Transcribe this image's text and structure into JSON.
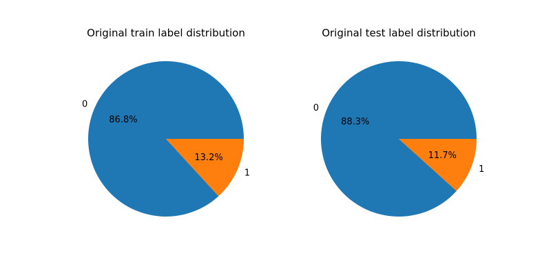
{
  "chart_data": [
    {
      "type": "pie",
      "title": "Original train label distribution",
      "labels": [
        "0",
        "1"
      ],
      "values": [
        86.8,
        13.2
      ],
      "value_labels": [
        "86.8%",
        "13.2%"
      ],
      "colors": [
        "#1f77b4",
        "#ff7f0e"
      ],
      "start_angle": 0,
      "direction": "counterclockwise"
    },
    {
      "type": "pie",
      "title": "Original test label distribution",
      "labels": [
        "0",
        "1"
      ],
      "values": [
        88.3,
        11.7
      ],
      "value_labels": [
        "88.3%",
        "11.7%"
      ],
      "colors": [
        "#1f77b4",
        "#ff7f0e"
      ],
      "start_angle": 0,
      "direction": "counterclockwise"
    }
  ]
}
